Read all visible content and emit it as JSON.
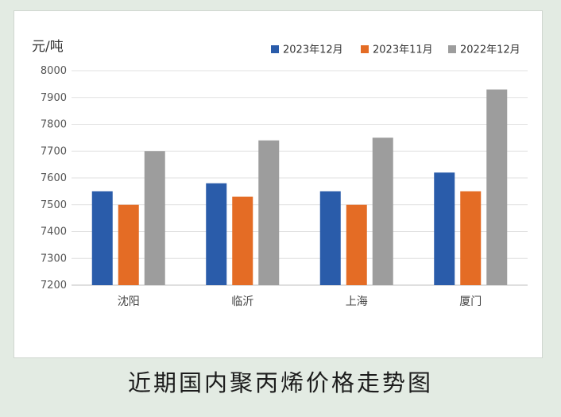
{
  "caption": "近期国内聚丙烯价格走势图",
  "chart_data": {
    "type": "bar",
    "unit_label": "元/吨",
    "categories": [
      "沈阳",
      "临沂",
      "上海",
      "厦门"
    ],
    "series": [
      {
        "name": "2023年12月",
        "color": "#2a5caa",
        "values": [
          7550,
          7580,
          7550,
          7620
        ]
      },
      {
        "name": "2023年11月",
        "color": "#e46c25",
        "values": [
          7500,
          7530,
          7500,
          7550
        ]
      },
      {
        "name": "2022年12月",
        "color": "#9d9d9d",
        "values": [
          7700,
          7740,
          7750,
          7930
        ]
      }
    ],
    "ylim": [
      7200,
      8000
    ],
    "yticks": [
      7200,
      7300,
      7400,
      7500,
      7600,
      7700,
      7800,
      7900,
      8000
    ],
    "grid": true,
    "legend_position": "top-right"
  }
}
